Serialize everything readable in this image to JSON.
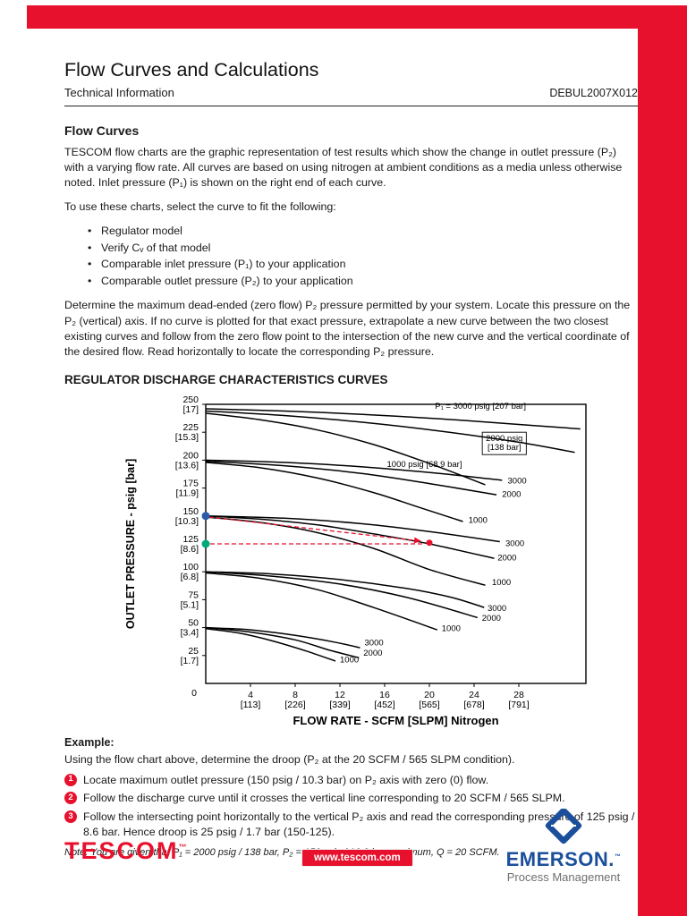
{
  "page": {
    "title": "Flow Curves and Calculations",
    "subtitle": "Technical Information",
    "doc_number": "DEBUL2007X012"
  },
  "section": {
    "heading": "Flow Curves",
    "para1": "TESCOM flow charts are the graphic representation of test results which show the change in outlet pressure (P₂) with a varying flow rate. All curves are based on using nitrogen at ambient conditions as a media unless otherwise noted. Inlet pressure (P₁) is shown on the right end of each curve.",
    "para2": "To use these charts, select the curve to fit the following:",
    "bullets": [
      "Regulator model",
      "Verify Cᵥ of that model",
      "Comparable inlet pressure (P₁) to your application",
      "Comparable outlet pressure (P₂) to your application"
    ],
    "para3": "Determine the maximum dead-ended (zero flow) P₂ pressure permitted by your system. Locate this pressure on the P₂ (vertical) axis. If no curve is plotted for that exact pressure, extrapolate a new curve between the two closest existing curves and follow from the zero flow point to the intersection of the new curve and the vertical coordinate of the desired flow. Read horizontally to locate the corresponding P₂ pressure."
  },
  "chart": {
    "heading": "REGULATOR DISCHARGE CHARACTERISTICS CURVES"
  },
  "chart_data": {
    "type": "line",
    "title": "REGULATOR DISCHARGE CHARACTERISTICS CURVES",
    "xlabel": "FLOW RATE - SCFM [SLPM] Nitrogen",
    "ylabel": "OUTLET PRESSURE - psig [bar]",
    "xlim": [
      0,
      34
    ],
    "ylim": [
      0,
      250
    ],
    "grid": false,
    "origin_label": "0",
    "annotation_color": "#e8112d",
    "y_ticks": [
      {
        "v": 250,
        "l1": "250",
        "l2": "[17]"
      },
      {
        "v": 225,
        "l1": "225",
        "l2": "[15.3]"
      },
      {
        "v": 200,
        "l1": "200",
        "l2": "[13.6]"
      },
      {
        "v": 175,
        "l1": "175",
        "l2": "[11.9]"
      },
      {
        "v": 150,
        "l1": "150",
        "l2": "[10.3]"
      },
      {
        "v": 125,
        "l1": "125",
        "l2": "[8.6]"
      },
      {
        "v": 100,
        "l1": "100",
        "l2": "[6.8]"
      },
      {
        "v": 75,
        "l1": "75",
        "l2": "[5.1]"
      },
      {
        "v": 50,
        "l1": "50",
        "l2": "[3.4]"
      },
      {
        "v": 25,
        "l1": "25",
        "l2": "[1.7]"
      }
    ],
    "x_ticks": [
      {
        "v": 4,
        "l1": "4",
        "l2": "[113]"
      },
      {
        "v": 8,
        "l1": "8",
        "l2": "[226]"
      },
      {
        "v": 12,
        "l1": "12",
        "l2": "[339]"
      },
      {
        "v": 16,
        "l1": "16",
        "l2": "[452]"
      },
      {
        "v": 20,
        "l1": "20",
        "l2": "[565]"
      },
      {
        "v": 24,
        "l1": "24",
        "l2": "[678]"
      },
      {
        "v": 28,
        "l1": "28",
        "l2": "[791]"
      }
    ],
    "series": [
      {
        "name": "dead-end-245-inlet-3000",
        "points": [
          [
            0,
            246
          ],
          [
            7,
            244
          ],
          [
            14,
            241
          ],
          [
            21,
            237
          ],
          [
            28,
            232
          ],
          [
            33.5,
            228
          ]
        ]
      },
      {
        "name": "dead-end-245-inlet-2000",
        "points": [
          [
            0,
            244
          ],
          [
            7,
            240
          ],
          [
            14,
            234
          ],
          [
            21,
            226
          ],
          [
            28,
            216
          ],
          [
            33,
            207
          ]
        ]
      },
      {
        "name": "dead-end-245-inlet-1000",
        "points": [
          [
            0,
            242
          ],
          [
            5,
            236
          ],
          [
            10,
            227
          ],
          [
            15,
            214
          ],
          [
            20,
            197
          ],
          [
            25,
            178
          ]
        ]
      },
      {
        "name": "dead-end-200-inlet-3000",
        "points": [
          [
            0,
            200
          ],
          [
            7,
            198
          ],
          [
            14,
            194
          ],
          [
            21,
            188
          ],
          [
            26.5,
            182
          ]
        ]
      },
      {
        "name": "dead-end-200-inlet-2000",
        "points": [
          [
            0,
            199
          ],
          [
            7,
            195
          ],
          [
            14,
            188
          ],
          [
            20,
            179
          ],
          [
            26,
            169
          ]
        ]
      },
      {
        "name": "dead-end-200-inlet-1000",
        "points": [
          [
            0,
            198
          ],
          [
            5,
            193
          ],
          [
            10,
            184
          ],
          [
            15,
            171
          ],
          [
            19,
            158
          ],
          [
            23,
            145
          ]
        ]
      },
      {
        "name": "dead-end-150-inlet-3000",
        "points": [
          [
            0,
            150
          ],
          [
            7,
            148
          ],
          [
            14,
            143
          ],
          [
            20,
            136
          ],
          [
            26.3,
            127
          ]
        ]
      },
      {
        "name": "dead-end-150-inlet-2000",
        "points": [
          [
            0,
            150
          ],
          [
            5,
            147
          ],
          [
            10,
            142
          ],
          [
            15,
            134
          ],
          [
            20,
            125
          ],
          [
            25.8,
            112
          ]
        ]
      },
      {
        "name": "dead-end-150-inlet-1000",
        "points": [
          [
            0,
            149
          ],
          [
            5,
            144
          ],
          [
            10,
            135
          ],
          [
            15,
            121
          ],
          [
            20,
            102
          ],
          [
            25,
            88
          ]
        ]
      },
      {
        "name": "dead-end-100-inlet-3000",
        "points": [
          [
            0,
            100
          ],
          [
            6,
            98
          ],
          [
            12,
            93
          ],
          [
            18,
            85
          ],
          [
            22,
            77
          ],
          [
            24.9,
            68
          ]
        ]
      },
      {
        "name": "dead-end-100-inlet-2000",
        "points": [
          [
            0,
            100
          ],
          [
            6,
            96
          ],
          [
            12,
            89
          ],
          [
            18,
            77
          ],
          [
            24.3,
            59
          ]
        ]
      },
      {
        "name": "dead-end-100-inlet-1000",
        "points": [
          [
            0,
            99
          ],
          [
            5,
            94
          ],
          [
            10,
            84
          ],
          [
            15,
            68
          ],
          [
            20.7,
            48
          ]
        ]
      },
      {
        "name": "dead-end-50-inlet-3000",
        "points": [
          [
            0,
            50
          ],
          [
            4,
            48
          ],
          [
            8,
            43
          ],
          [
            11.5,
            37
          ],
          [
            13.8,
            32
          ]
        ]
      },
      {
        "name": "dead-end-50-inlet-2000",
        "points": [
          [
            0,
            50
          ],
          [
            4,
            46
          ],
          [
            8,
            39
          ],
          [
            11,
            30
          ],
          [
            13.7,
            23
          ]
        ]
      },
      {
        "name": "dead-end-50-inlet-1000",
        "points": [
          [
            0,
            49
          ],
          [
            3,
            45
          ],
          [
            6,
            38
          ],
          [
            9,
            29
          ],
          [
            11.6,
            20
          ]
        ]
      }
    ],
    "labels": [
      {
        "lines": [
          "P₁ = 3000 psig [207 bar]"
        ],
        "x": 20.5,
        "y": 246,
        "anchor": "start",
        "boxed": false
      },
      {
        "lines": [
          "2000 psig",
          "[138 bar]"
        ],
        "x": 26.7,
        "y": 217,
        "anchor": "middle",
        "boxed": true
      },
      {
        "lines": [
          "1000 psig [68.9 bar]"
        ],
        "x": 16.2,
        "y": 194,
        "anchor": "start",
        "boxed": false
      },
      {
        "lines": [
          "3000"
        ],
        "x": 27.0,
        "y": 179,
        "anchor": "start",
        "boxed": false
      },
      {
        "lines": [
          "2000"
        ],
        "x": 26.5,
        "y": 167,
        "anchor": "start",
        "boxed": false
      },
      {
        "lines": [
          "1000"
        ],
        "x": 23.5,
        "y": 144,
        "anchor": "start",
        "boxed": false
      },
      {
        "lines": [
          "3000"
        ],
        "x": 26.8,
        "y": 123,
        "anchor": "start",
        "boxed": false
      },
      {
        "lines": [
          "2000"
        ],
        "x": 26.1,
        "y": 110,
        "anchor": "start",
        "boxed": false
      },
      {
        "lines": [
          "1000"
        ],
        "x": 25.6,
        "y": 88,
        "anchor": "start",
        "boxed": false
      },
      {
        "lines": [
          "3000"
        ],
        "x": 25.2,
        "y": 65,
        "anchor": "start",
        "boxed": false
      },
      {
        "lines": [
          "2000"
        ],
        "x": 24.7,
        "y": 56,
        "anchor": "start",
        "boxed": false
      },
      {
        "lines": [
          "1000"
        ],
        "x": 21.1,
        "y": 47,
        "anchor": "start",
        "boxed": false
      },
      {
        "lines": [
          "3000"
        ],
        "x": 14.2,
        "y": 34,
        "anchor": "start",
        "boxed": false
      },
      {
        "lines": [
          "2000"
        ],
        "x": 14.1,
        "y": 25,
        "anchor": "start",
        "boxed": false
      },
      {
        "lines": [
          "1000"
        ],
        "x": 12.0,
        "y": 19,
        "anchor": "start",
        "boxed": false
      }
    ],
    "guides": [
      {
        "from": [
          0.3,
          149
        ],
        "to": [
          19.2,
          127.6
        ],
        "arrow": true
      },
      {
        "from": [
          0.4,
          125
        ],
        "to": [
          19.6,
          125
        ],
        "arrow": false
      }
    ],
    "points": [
      {
        "name": "start-pressure-marker",
        "x": 0,
        "y": 150,
        "r": 4.5,
        "color": "#2a5caa"
      },
      {
        "name": "droop-pressure-marker",
        "x": 0,
        "y": 125,
        "r": 4.5,
        "color": "#00a87e"
      },
      {
        "name": "intersection-marker",
        "x": 20,
        "y": 126,
        "r": 3.5,
        "color": "#e8112d"
      }
    ]
  },
  "example": {
    "heading": "Example:",
    "intro": "Using the flow chart above, determine the droop (P₂ at the 20 SCFM / 565 SLPM condition).",
    "steps": [
      {
        "num": "1",
        "text": "Locate maximum outlet pressure (150 psig / 10.3 bar) on P₂ axis with zero (0) flow."
      },
      {
        "num": "2",
        "text": "Follow the discharge curve until it crosses the vertical line corresponding to 20 SCFM / 565 SLPM."
      },
      {
        "num": "3",
        "text": "Follow the intersecting point horizontally to the vertical P₂ axis and read the corresponding pressure of 125 psig / 8.6 bar. Hence droop is 25 psig / 1.7 bar (150-125)."
      }
    ],
    "note": "Note: You are given that P₁ = 2000 psig / 138 bar, P₂ = 150 psig / 10.3 bar maximum, Q = 20 SCFM."
  },
  "footer": {
    "tescom_logo": "TESCOM",
    "tescom_tm": "™",
    "website": "www.tescom.com",
    "emerson_wordmark": "EMERSON.",
    "emerson_tm": "™",
    "emerson_tagline": "Process Management"
  },
  "colors": {
    "brand_red": "#e8112d",
    "emerson_blue": "#1b4f9c",
    "text_gray": "#6d6e71"
  }
}
